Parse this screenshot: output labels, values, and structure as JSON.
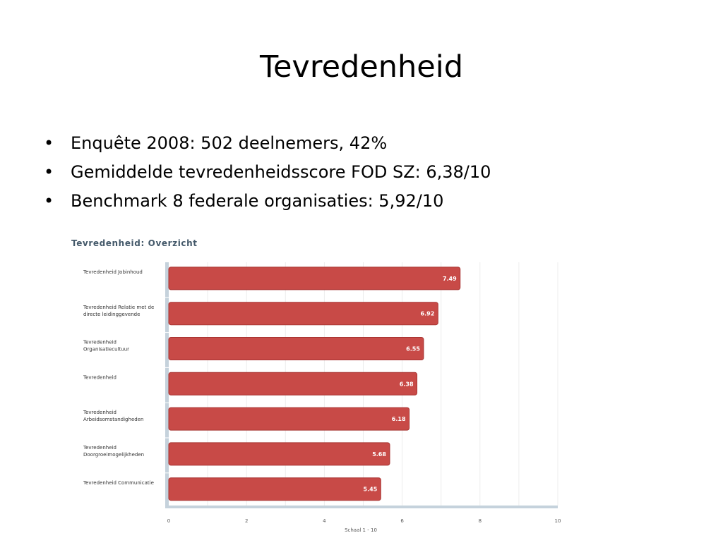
{
  "slide": {
    "title": "Tevredenheid",
    "bullets": [
      "Enquête 2008: 502 deelnemers, 42%",
      "Gemiddelde tevredenheidsscore FOD SZ: 6,38/10",
      "Benchmark 8 federale organisaties: 5,92/10"
    ],
    "bullet_marker": "•"
  },
  "chart_data": {
    "type": "bar",
    "orientation": "horizontal",
    "title": "Tevredenheid: Overzicht",
    "xlabel": "Schaal 1 - 10",
    "ylabel": "",
    "xlim": [
      0,
      10
    ],
    "x_ticks": [
      0,
      2,
      4,
      6,
      8,
      10
    ],
    "grid": true,
    "categories": [
      [
        "Tevredenheid Jobinhoud"
      ],
      [
        "Tevredenheid Relatie met de",
        "directe leidinggevende"
      ],
      [
        "Tevredenheid",
        "Organisatiecultuur"
      ],
      [
        "Tevredenheid"
      ],
      [
        "Tevredenheid",
        "Arbeidsomstandigheden"
      ],
      [
        "Tevredenheid",
        "Doorgroeimogelijkheden"
      ],
      [
        "Tevredenheid Communicatie"
      ]
    ],
    "values": [
      7.49,
      6.92,
      6.55,
      6.38,
      6.18,
      5.68,
      5.45
    ],
    "data_labels": [
      "7.49",
      "6.92",
      "6.55",
      "6.38",
      "6.18",
      "5.68",
      "5.45"
    ],
    "colors": {
      "bar": "#c84a47",
      "bar_edge": "#a83432",
      "title": "#44596a",
      "axis": "#c5d2dc",
      "grid": "#ececec",
      "label": "#333333"
    }
  }
}
